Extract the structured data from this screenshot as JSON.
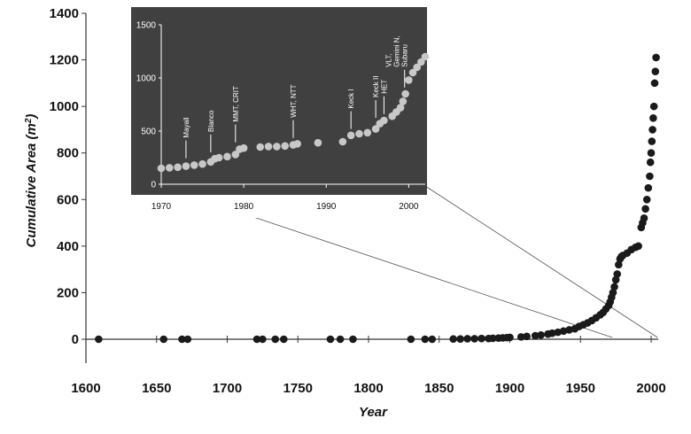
{
  "chart_data": [
    {
      "type": "scatter",
      "title": "",
      "xlabel": "Year",
      "ylabel": "Cumulative Area (m²)",
      "ylabel_parts": {
        "main": "Cumulative Area (m",
        "sup": "2",
        "close": ")"
      },
      "xlim": [
        1600,
        2000
      ],
      "ylim": [
        0,
        1400
      ],
      "xticks": [
        1600,
        1650,
        1700,
        1750,
        1800,
        1850,
        1900,
        1950,
        2000
      ],
      "yticks": [
        0,
        200,
        400,
        600,
        800,
        1000,
        1200,
        1400
      ],
      "grid": false,
      "marker_color": "#1a1a1a",
      "points": [
        [
          1609,
          0
        ],
        [
          1655,
          0
        ],
        [
          1668,
          0
        ],
        [
          1672,
          0
        ],
        [
          1721,
          0
        ],
        [
          1725,
          0
        ],
        [
          1734,
          0
        ],
        [
          1740,
          0
        ],
        [
          1773,
          0
        ],
        [
          1780,
          0
        ],
        [
          1789,
          0
        ],
        [
          1830,
          0
        ],
        [
          1840,
          0
        ],
        [
          1845,
          0
        ],
        [
          1860,
          1
        ],
        [
          1865,
          1
        ],
        [
          1870,
          2
        ],
        [
          1875,
          2
        ],
        [
          1880,
          3
        ],
        [
          1885,
          3
        ],
        [
          1888,
          4
        ],
        [
          1892,
          5
        ],
        [
          1895,
          6
        ],
        [
          1898,
          7
        ],
        [
          1900,
          8
        ],
        [
          1908,
          10
        ],
        [
          1912,
          12
        ],
        [
          1918,
          15
        ],
        [
          1922,
          18
        ],
        [
          1927,
          22
        ],
        [
          1930,
          26
        ],
        [
          1934,
          30
        ],
        [
          1938,
          35
        ],
        [
          1942,
          40
        ],
        [
          1946,
          45
        ],
        [
          1949,
          55
        ],
        [
          1952,
          62
        ],
        [
          1955,
          70
        ],
        [
          1958,
          80
        ],
        [
          1961,
          92
        ],
        [
          1964,
          105
        ],
        [
          1966,
          115
        ],
        [
          1968,
          130
        ],
        [
          1970,
          145
        ],
        [
          1971,
          160
        ],
        [
          1972,
          180
        ],
        [
          1973,
          200
        ],
        [
          1974,
          225
        ],
        [
          1975,
          255
        ],
        [
          1976,
          280
        ],
        [
          1977,
          320
        ],
        [
          1978,
          345
        ],
        [
          1979,
          355
        ],
        [
          1980,
          360
        ],
        [
          1983,
          370
        ],
        [
          1986,
          385
        ],
        [
          1989,
          395
        ],
        [
          1991,
          400
        ],
        [
          1993,
          480
        ],
        [
          1994,
          500
        ],
        [
          1995,
          520
        ],
        [
          1996,
          560
        ],
        [
          1997,
          600
        ],
        [
          1998,
          650
        ],
        [
          1999,
          700
        ],
        [
          1999.5,
          760
        ],
        [
          2000,
          800
        ],
        [
          2000.5,
          850
        ],
        [
          2001,
          900
        ],
        [
          2001.5,
          950
        ],
        [
          2002,
          1000
        ],
        [
          2002.5,
          1100
        ],
        [
          2003,
          1150
        ],
        [
          2003.5,
          1210
        ]
      ]
    },
    {
      "type": "scatter",
      "title": "",
      "xlabel": "",
      "ylabel": "",
      "xlim": [
        1970,
        2002
      ],
      "ylim": [
        0,
        1500
      ],
      "xticks": [
        1970,
        1980,
        1990,
        2000
      ],
      "yticks": [
        0,
        500,
        1000,
        1500
      ],
      "background": "#404040",
      "marker_color": "#c8c8c8",
      "points": [
        [
          1970,
          150
        ],
        [
          1971,
          155
        ],
        [
          1972,
          160
        ],
        [
          1973,
          170
        ],
        [
          1974,
          180
        ],
        [
          1975,
          190
        ],
        [
          1976,
          210
        ],
        [
          1976.5,
          240
        ],
        [
          1977,
          250
        ],
        [
          1978,
          260
        ],
        [
          1979,
          280
        ],
        [
          1979.5,
          330
        ],
        [
          1980,
          340
        ],
        [
          1982,
          350
        ],
        [
          1983,
          355
        ],
        [
          1984,
          355
        ],
        [
          1985,
          360
        ],
        [
          1986,
          370
        ],
        [
          1986.5,
          380
        ],
        [
          1989,
          390
        ],
        [
          1992,
          400
        ],
        [
          1993,
          460
        ],
        [
          1994,
          475
        ],
        [
          1995,
          485
        ],
        [
          1996,
          520
        ],
        [
          1996.5,
          570
        ],
        [
          1997,
          600
        ],
        [
          1998,
          640
        ],
        [
          1998.5,
          680
        ],
        [
          1999,
          720
        ],
        [
          1999.3,
          780
        ],
        [
          1999.6,
          850
        ],
        [
          2000,
          980
        ],
        [
          2000.5,
          1050
        ],
        [
          2001,
          1100
        ],
        [
          2001.5,
          1150
        ],
        [
          2002,
          1200
        ]
      ],
      "annotations": [
        {
          "lines": [
            "Mayall"
          ],
          "x": 1973,
          "y": 195
        },
        {
          "lines": [
            "Blanco"
          ],
          "x": 1976,
          "y": 250
        },
        {
          "lines": [
            "MMT, CRIT"
          ],
          "x": 1979,
          "y": 345
        },
        {
          "lines": [
            "WHT, NTT"
          ],
          "x": 1986,
          "y": 385
        },
        {
          "lines": [
            "Keck I"
          ],
          "x": 1993,
          "y": 470
        },
        {
          "lines": [
            "Keck II"
          ],
          "x": 1996,
          "y": 575
        },
        {
          "lines": [
            "HET"
          ],
          "x": 1997,
          "y": 610
        },
        {
          "lines": [
            "VLT,",
            "Gemini N,",
            "Subaru"
          ],
          "x": 1999.5,
          "y": 860
        }
      ]
    }
  ]
}
